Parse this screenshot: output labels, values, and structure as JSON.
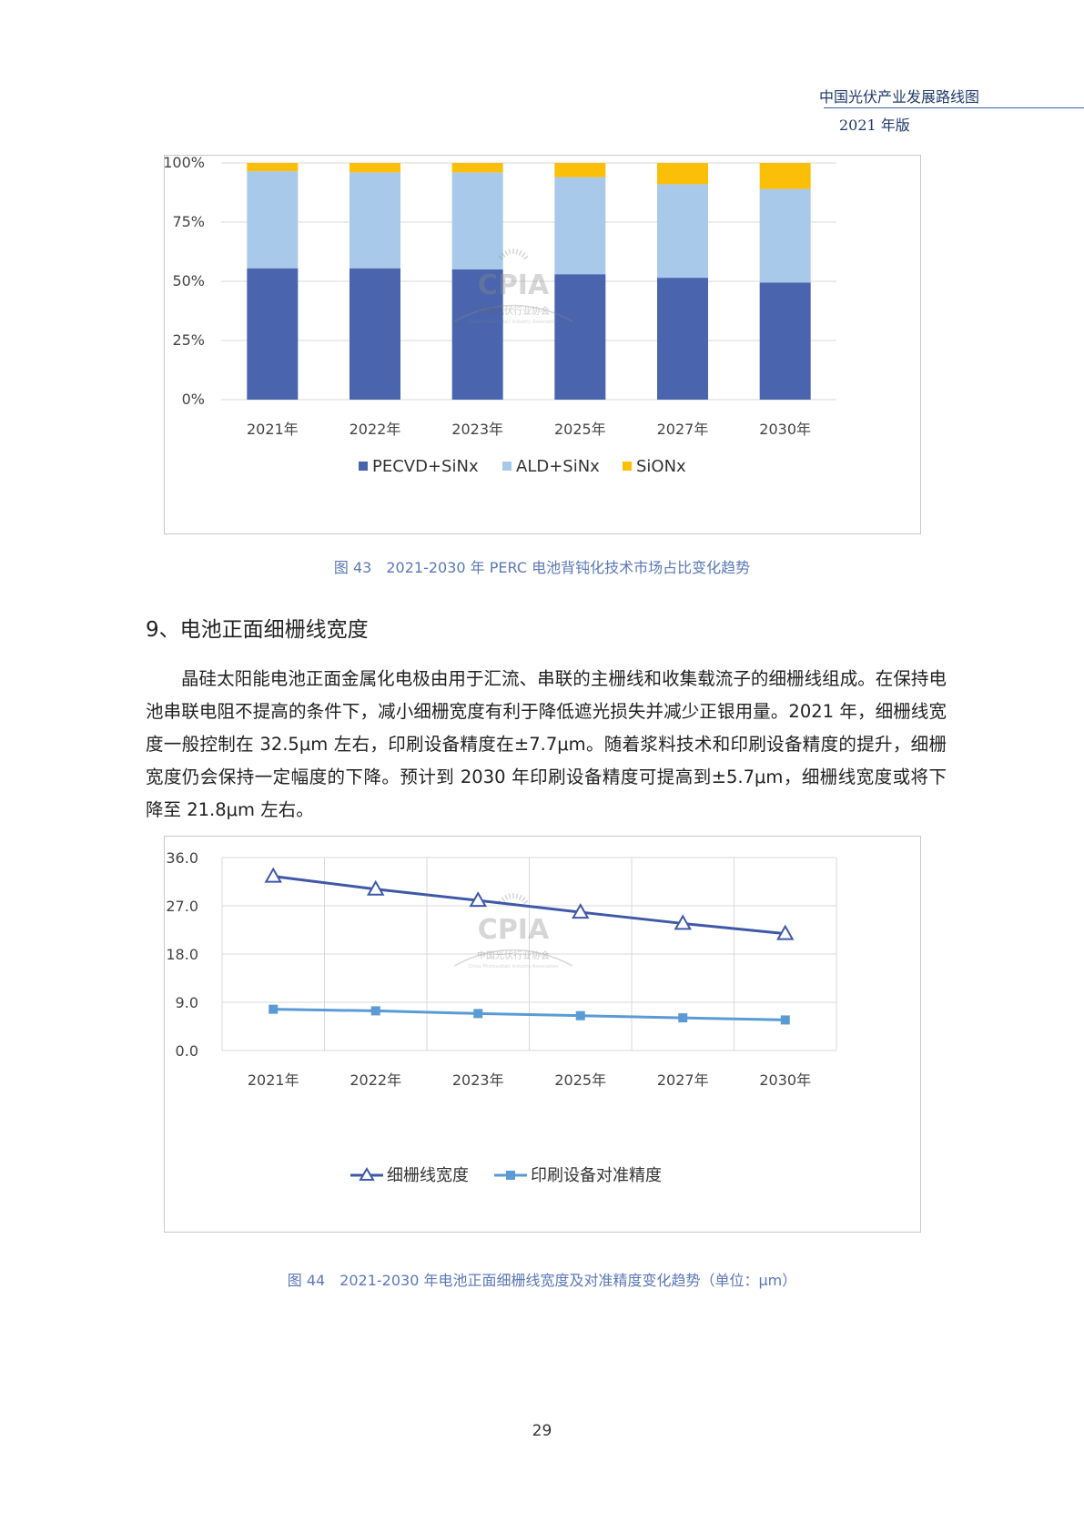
{
  "header": {
    "title": "中国光伏产业发展路线图",
    "edition": "2021 年版"
  },
  "watermark": {
    "logo_text": "CPIA",
    "org_name": "中国光伏行业协会",
    "org_name_en": "China Photovoltaic Industry Association"
  },
  "figure43": {
    "caption": "图 43　2021-2030 年 PERC 电池背钝化技术市场占比变化趋势"
  },
  "section": {
    "heading": "9、电池正面细栅线宽度",
    "paragraph": "晶硅太阳能电池正面金属化电极由用于汇流、串联的主栅线和收集载流子的细栅线组成。在保持电池串联电阻不提高的条件下，减小细栅宽度有利于降低遮光损失并减少正银用量。2021 年，细栅线宽度一般控制在 32.5μm 左右，印刷设备精度在±7.7μm。随着浆料技术和印刷设备精度的提升，细栅宽度仍会保持一定幅度的下降。预计到 2030 年印刷设备精度可提高到±5.7μm，细栅线宽度或将下降至 21.8μm 左右。"
  },
  "figure44": {
    "caption": "图 44　2021-2030 年电池正面细栅线宽度及对准精度变化趋势（单位：μm）"
  },
  "page_number": "29",
  "chart_data": [
    {
      "type": "bar",
      "stacked": true,
      "categories": [
        "2021年",
        "2022年",
        "2023年",
        "2025年",
        "2027年",
        "2030年"
      ],
      "series": [
        {
          "name": "PECVD+SiNx",
          "color": "#4a64ad",
          "values": [
            55.5,
            55.5,
            55,
            53,
            51.5,
            49.5
          ]
        },
        {
          "name": "ALD+SiNx",
          "color": "#a9c9ea",
          "values": [
            41,
            40.5,
            41,
            41,
            39.5,
            39.5
          ]
        },
        {
          "name": "SiONx",
          "color": "#fbbf0a",
          "values": [
            3.5,
            4,
            4,
            6,
            9,
            11
          ]
        }
      ],
      "yticks": [
        "0%",
        "25%",
        "50%",
        "75%",
        "100%"
      ],
      "ylim": [
        0,
        100
      ],
      "grid": true,
      "legend": "bottom"
    },
    {
      "type": "line",
      "categories": [
        "2021年",
        "2022年",
        "2023年",
        "2025年",
        "2027年",
        "2030年"
      ],
      "series": [
        {
          "name": "细栅线宽度",
          "color": "#3f58a8",
          "marker": "triangle",
          "values": [
            32.5,
            30.1,
            28.0,
            25.8,
            23.7,
            21.8
          ]
        },
        {
          "name": "印刷设备对准精度",
          "color": "#5b9bd5",
          "marker": "square",
          "values": [
            7.7,
            7.4,
            6.9,
            6.5,
            6.1,
            5.7
          ]
        }
      ],
      "yticks": [
        "0.0",
        "9.0",
        "18.0",
        "27.0",
        "36.0"
      ],
      "ylim": [
        0,
        36
      ],
      "grid": true,
      "legend": "bottom"
    }
  ]
}
